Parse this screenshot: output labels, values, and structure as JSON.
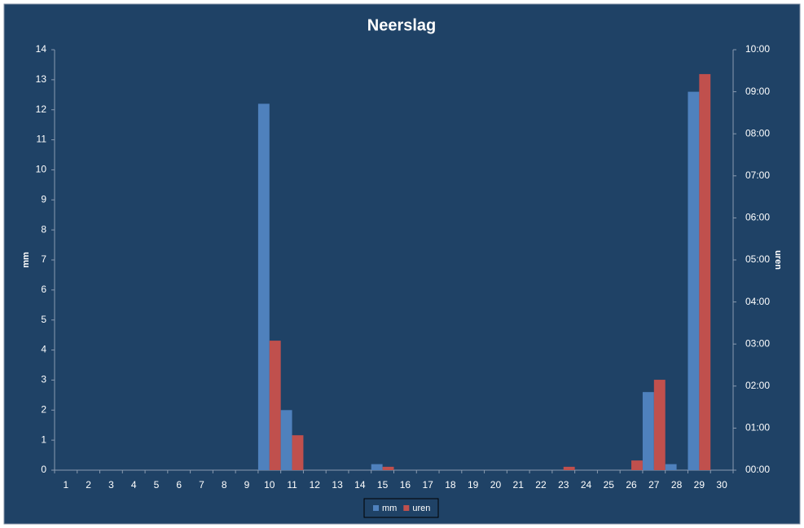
{
  "chart_data": {
    "type": "bar",
    "title": "Neerslag",
    "y_label": "mm",
    "y2_label": "uren",
    "categories": [
      "1",
      "2",
      "3",
      "4",
      "5",
      "6",
      "7",
      "8",
      "9",
      "10",
      "11",
      "12",
      "13",
      "14",
      "15",
      "16",
      "17",
      "18",
      "19",
      "20",
      "21",
      "22",
      "23",
      "24",
      "25",
      "26",
      "27",
      "28",
      "29",
      "30"
    ],
    "series": [
      {
        "name": "mm",
        "color": "#4f81bd",
        "values": [
          0,
          0,
          0,
          0,
          0,
          0,
          0,
          0,
          0,
          12.2,
          2,
          0,
          0,
          0,
          0.2,
          0,
          0,
          0,
          0,
          0,
          0,
          0,
          0,
          0,
          0,
          0,
          2.6,
          0.2,
          12.6,
          0
        ]
      },
      {
        "name": "uren",
        "color": "#c0504d",
        "axis": "y2",
        "values": [
          0,
          0,
          0,
          0,
          0,
          0,
          0,
          0,
          0,
          3.08,
          0.83,
          0,
          0,
          0,
          0.08,
          0,
          0,
          0,
          0,
          0,
          0,
          0,
          0.08,
          0,
          0,
          0.23,
          2.15,
          0,
          9.42,
          0
        ]
      }
    ],
    "ylim": [
      0,
      14
    ],
    "yticks": [
      0,
      1,
      2,
      3,
      4,
      5,
      6,
      7,
      8,
      9,
      10,
      11,
      12,
      13,
      14
    ],
    "y2lim": [
      0,
      10
    ],
    "y2ticks": [
      {
        "value": 0,
        "label": "00:00"
      },
      {
        "value": 1,
        "label": "01:00"
      },
      {
        "value": 2,
        "label": "02:00"
      },
      {
        "value": 3,
        "label": "03:00"
      },
      {
        "value": 4,
        "label": "04:00"
      },
      {
        "value": 5,
        "label": "05:00"
      },
      {
        "value": 6,
        "label": "06:00"
      },
      {
        "value": 7,
        "label": "07:00"
      },
      {
        "value": 8,
        "label": "08:00"
      },
      {
        "value": 9,
        "label": "09:00"
      },
      {
        "value": 10,
        "label": "10:00"
      }
    ],
    "grid": false,
    "legend": "bottom"
  }
}
